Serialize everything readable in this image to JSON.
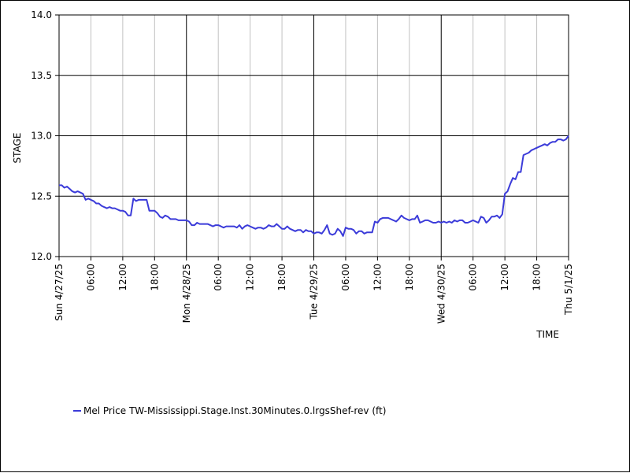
{
  "chart_data": {
    "type": "line",
    "xlabel": "TIME",
    "ylabel": "STAGE",
    "ylim": [
      12.0,
      14.0
    ],
    "yticks": [
      "12.0",
      "12.5",
      "13.0",
      "13.5",
      "14.0"
    ],
    "xlim_hours": [
      0,
      96
    ],
    "day_labels": [
      "Sun 4/27/25",
      "Mon 4/28/25",
      "Tue 4/29/25",
      "Wed 4/30/25",
      "Thu 5/1/25"
    ],
    "hour_labels": [
      "06:00",
      "12:00",
      "18:00"
    ],
    "grid": true,
    "legend_position": "bottom-left",
    "series": [
      {
        "name": "Mel Price TW-Mississippi.Stage.Inst.30Minutes.0.lrgsShef-rev (ft)",
        "color": "#3b3bd9",
        "points": [
          [
            0,
            12.59
          ],
          [
            0.5,
            12.59
          ],
          [
            1,
            12.57
          ],
          [
            1.5,
            12.58
          ],
          [
            2,
            12.56
          ],
          [
            2.5,
            12.54
          ],
          [
            3,
            12.53
          ],
          [
            3.5,
            12.54
          ],
          [
            4,
            12.53
          ],
          [
            4.5,
            12.52
          ],
          [
            5,
            12.47
          ],
          [
            5.5,
            12.48
          ],
          [
            6,
            12.47
          ],
          [
            6.5,
            12.46
          ],
          [
            7,
            12.44
          ],
          [
            7.5,
            12.44
          ],
          [
            8,
            12.42
          ],
          [
            8.5,
            12.41
          ],
          [
            9,
            12.4
          ],
          [
            9.5,
            12.41
          ],
          [
            10,
            12.4
          ],
          [
            10.5,
            12.4
          ],
          [
            11,
            12.39
          ],
          [
            11.5,
            12.38
          ],
          [
            12,
            12.38
          ],
          [
            12.5,
            12.37
          ],
          [
            13,
            12.34
          ],
          [
            13.5,
            12.34
          ],
          [
            14,
            12.48
          ],
          [
            14.5,
            12.46
          ],
          [
            15,
            12.47
          ],
          [
            15.5,
            12.47
          ],
          [
            16,
            12.47
          ],
          [
            16.5,
            12.47
          ],
          [
            17,
            12.38
          ],
          [
            17.5,
            12.38
          ],
          [
            18,
            12.38
          ],
          [
            18.5,
            12.36
          ],
          [
            19,
            12.33
          ],
          [
            19.5,
            12.32
          ],
          [
            20,
            12.34
          ],
          [
            20.5,
            12.33
          ],
          [
            21,
            12.31
          ],
          [
            21.5,
            12.31
          ],
          [
            22,
            12.31
          ],
          [
            22.5,
            12.3
          ],
          [
            23,
            12.3
          ],
          [
            23.5,
            12.3
          ],
          [
            24,
            12.3
          ],
          [
            24.5,
            12.29
          ],
          [
            25,
            12.26
          ],
          [
            25.5,
            12.26
          ],
          [
            26,
            12.28
          ],
          [
            26.5,
            12.27
          ],
          [
            27,
            12.27
          ],
          [
            27.5,
            12.27
          ],
          [
            28,
            12.27
          ],
          [
            28.5,
            12.26
          ],
          [
            29,
            12.25
          ],
          [
            29.5,
            12.26
          ],
          [
            30,
            12.26
          ],
          [
            30.5,
            12.25
          ],
          [
            31,
            12.24
          ],
          [
            31.5,
            12.25
          ],
          [
            32,
            12.25
          ],
          [
            32.5,
            12.25
          ],
          [
            33,
            12.25
          ],
          [
            33.5,
            12.24
          ],
          [
            34,
            12.26
          ],
          [
            34.5,
            12.23
          ],
          [
            35,
            12.25
          ],
          [
            35.5,
            12.26
          ],
          [
            36,
            12.25
          ],
          [
            36.5,
            12.24
          ],
          [
            37,
            12.23
          ],
          [
            37.5,
            12.24
          ],
          [
            38,
            12.24
          ],
          [
            38.5,
            12.23
          ],
          [
            39,
            12.24
          ],
          [
            39.5,
            12.26
          ],
          [
            40,
            12.25
          ],
          [
            40.5,
            12.25
          ],
          [
            41,
            12.27
          ],
          [
            41.5,
            12.25
          ],
          [
            42,
            12.23
          ],
          [
            42.5,
            12.23
          ],
          [
            43,
            12.25
          ],
          [
            43.5,
            12.23
          ],
          [
            44,
            12.22
          ],
          [
            44.5,
            12.21
          ],
          [
            45,
            12.22
          ],
          [
            45.5,
            12.22
          ],
          [
            46,
            12.2
          ],
          [
            46.5,
            12.22
          ],
          [
            47,
            12.21
          ],
          [
            47.5,
            12.21
          ],
          [
            48,
            12.19
          ],
          [
            48.5,
            12.2
          ],
          [
            49,
            12.2
          ],
          [
            49.5,
            12.19
          ],
          [
            50,
            12.22
          ],
          [
            50.5,
            12.26
          ],
          [
            51,
            12.19
          ],
          [
            51.5,
            12.18
          ],
          [
            52,
            12.19
          ],
          [
            52.5,
            12.23
          ],
          [
            53,
            12.21
          ],
          [
            53.5,
            12.17
          ],
          [
            54,
            12.24
          ],
          [
            54.5,
            12.23
          ],
          [
            55,
            12.23
          ],
          [
            55.5,
            12.22
          ],
          [
            56,
            12.19
          ],
          [
            56.5,
            12.21
          ],
          [
            57,
            12.21
          ],
          [
            57.5,
            12.19
          ],
          [
            58,
            12.2
          ],
          [
            58.5,
            12.2
          ],
          [
            59,
            12.2
          ],
          [
            59.5,
            12.29
          ],
          [
            60,
            12.28
          ],
          [
            60.5,
            12.31
          ],
          [
            61,
            12.32
          ],
          [
            61.5,
            12.32
          ],
          [
            62,
            12.32
          ],
          [
            62.5,
            12.31
          ],
          [
            63,
            12.3
          ],
          [
            63.5,
            12.29
          ],
          [
            64,
            12.31
          ],
          [
            64.5,
            12.34
          ],
          [
            65,
            12.32
          ],
          [
            65.5,
            12.31
          ],
          [
            66,
            12.3
          ],
          [
            66.5,
            12.31
          ],
          [
            67,
            12.31
          ],
          [
            67.5,
            12.34
          ],
          [
            68,
            12.28
          ],
          [
            68.5,
            12.29
          ],
          [
            69,
            12.3
          ],
          [
            69.5,
            12.3
          ],
          [
            70,
            12.29
          ],
          [
            70.5,
            12.28
          ],
          [
            71,
            12.28
          ],
          [
            71.5,
            12.29
          ],
          [
            72,
            12.28
          ],
          [
            72.5,
            12.29
          ],
          [
            73,
            12.28
          ],
          [
            73.5,
            12.29
          ],
          [
            74,
            12.28
          ],
          [
            74.5,
            12.3
          ],
          [
            75,
            12.29
          ],
          [
            75.5,
            12.3
          ],
          [
            76,
            12.3
          ],
          [
            76.5,
            12.28
          ],
          [
            77,
            12.28
          ],
          [
            77.5,
            12.29
          ],
          [
            78,
            12.3
          ],
          [
            78.5,
            12.29
          ],
          [
            79,
            12.28
          ],
          [
            79.5,
            12.33
          ],
          [
            80,
            12.32
          ],
          [
            80.5,
            12.28
          ],
          [
            81,
            12.3
          ],
          [
            81.5,
            12.33
          ],
          [
            82,
            12.33
          ],
          [
            82.5,
            12.34
          ],
          [
            83,
            12.32
          ],
          [
            83.5,
            12.35
          ],
          [
            84,
            12.52
          ],
          [
            84.5,
            12.54
          ],
          [
            85,
            12.6
          ],
          [
            85.5,
            12.65
          ],
          [
            86,
            12.64
          ],
          [
            86.5,
            12.7
          ],
          [
            87,
            12.7
          ],
          [
            87.5,
            12.84
          ],
          [
            88,
            12.85
          ],
          [
            88.5,
            12.86
          ],
          [
            89,
            12.88
          ],
          [
            89.5,
            12.89
          ],
          [
            90,
            12.9
          ],
          [
            90.5,
            12.91
          ],
          [
            91,
            12.92
          ],
          [
            91.5,
            12.93
          ],
          [
            92,
            12.92
          ],
          [
            92.5,
            12.94
          ],
          [
            93,
            12.95
          ],
          [
            93.5,
            12.95
          ],
          [
            94,
            12.97
          ],
          [
            94.5,
            12.97
          ],
          [
            95,
            12.96
          ],
          [
            95.5,
            12.97
          ],
          [
            96,
            13.0
          ]
        ]
      }
    ]
  }
}
